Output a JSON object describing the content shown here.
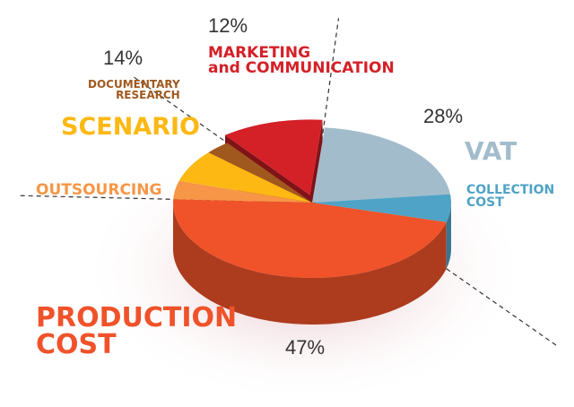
{
  "chart_data": {
    "type": "pie",
    "groups": [
      {
        "value": 47,
        "value_label": "47%",
        "categories": [
          "PRODUCTION\nCOST"
        ],
        "values": [
          47
        ],
        "colors": [
          "#f0522a"
        ]
      },
      {
        "value": 14,
        "value_label": "14%",
        "categories": [
          "OUTSOURCING",
          "SCENARIO",
          "DOCUMENTARY\nRESEARCH"
        ],
        "values": [
          4,
          7,
          3
        ],
        "colors": [
          "#f79646",
          "#fdb813",
          "#a0581e"
        ]
      },
      {
        "value": 12,
        "value_label": "12%",
        "categories": [
          "MARKETING\nand COMMUNICATION"
        ],
        "values": [
          12
        ],
        "colors": [
          "#d42027"
        ]
      },
      {
        "value": 28,
        "value_label": "28%",
        "categories": [
          "VAT",
          "COLLECTION\nCOST"
        ],
        "values": [
          22,
          6
        ],
        "colors": [
          "#a3bccb",
          "#4fa3c6"
        ]
      }
    ]
  }
}
